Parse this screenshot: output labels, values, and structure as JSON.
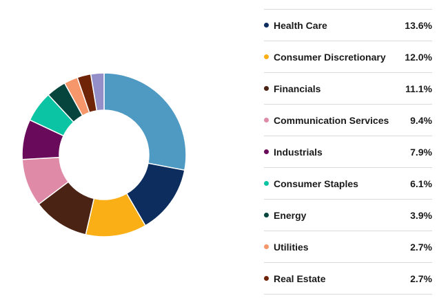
{
  "chart_data": {
    "type": "pie",
    "variant": "donut",
    "start": "top",
    "direction": "clockwise",
    "slices": [
      {
        "label": "",
        "value": 28.0,
        "color": "#4f9ac3",
        "in_legend": false
      },
      {
        "label": "Health Care",
        "value": 13.6,
        "display": "13.6%",
        "color": "#0c2d5e",
        "in_legend": true
      },
      {
        "label": "Consumer Discretionary",
        "value": 12.0,
        "display": "12.0%",
        "color": "#fbaf17",
        "in_legend": true
      },
      {
        "label": "Financials",
        "value": 11.1,
        "display": "11.1%",
        "color": "#4b2314",
        "in_legend": true
      },
      {
        "label": "Communication Services",
        "value": 9.4,
        "display": "9.4%",
        "color": "#df8ba7",
        "in_legend": true
      },
      {
        "label": "Industrials",
        "value": 7.9,
        "display": "7.9%",
        "color": "#690a5a",
        "in_legend": true
      },
      {
        "label": "Consumer Staples",
        "value": 6.1,
        "display": "6.1%",
        "color": "#0ac4a3",
        "in_legend": true
      },
      {
        "label": "Energy",
        "value": 3.9,
        "display": "3.9%",
        "color": "#06443e",
        "in_legend": true
      },
      {
        "label": "Utilities",
        "value": 2.7,
        "display": "2.7%",
        "color": "#f5976b",
        "in_legend": true
      },
      {
        "label": "Real Estate",
        "value": 2.7,
        "display": "2.7%",
        "color": "#6f2408",
        "in_legend": true
      },
      {
        "label": "",
        "value": 2.6,
        "color": "#948fc9",
        "in_legend": false
      }
    ]
  }
}
